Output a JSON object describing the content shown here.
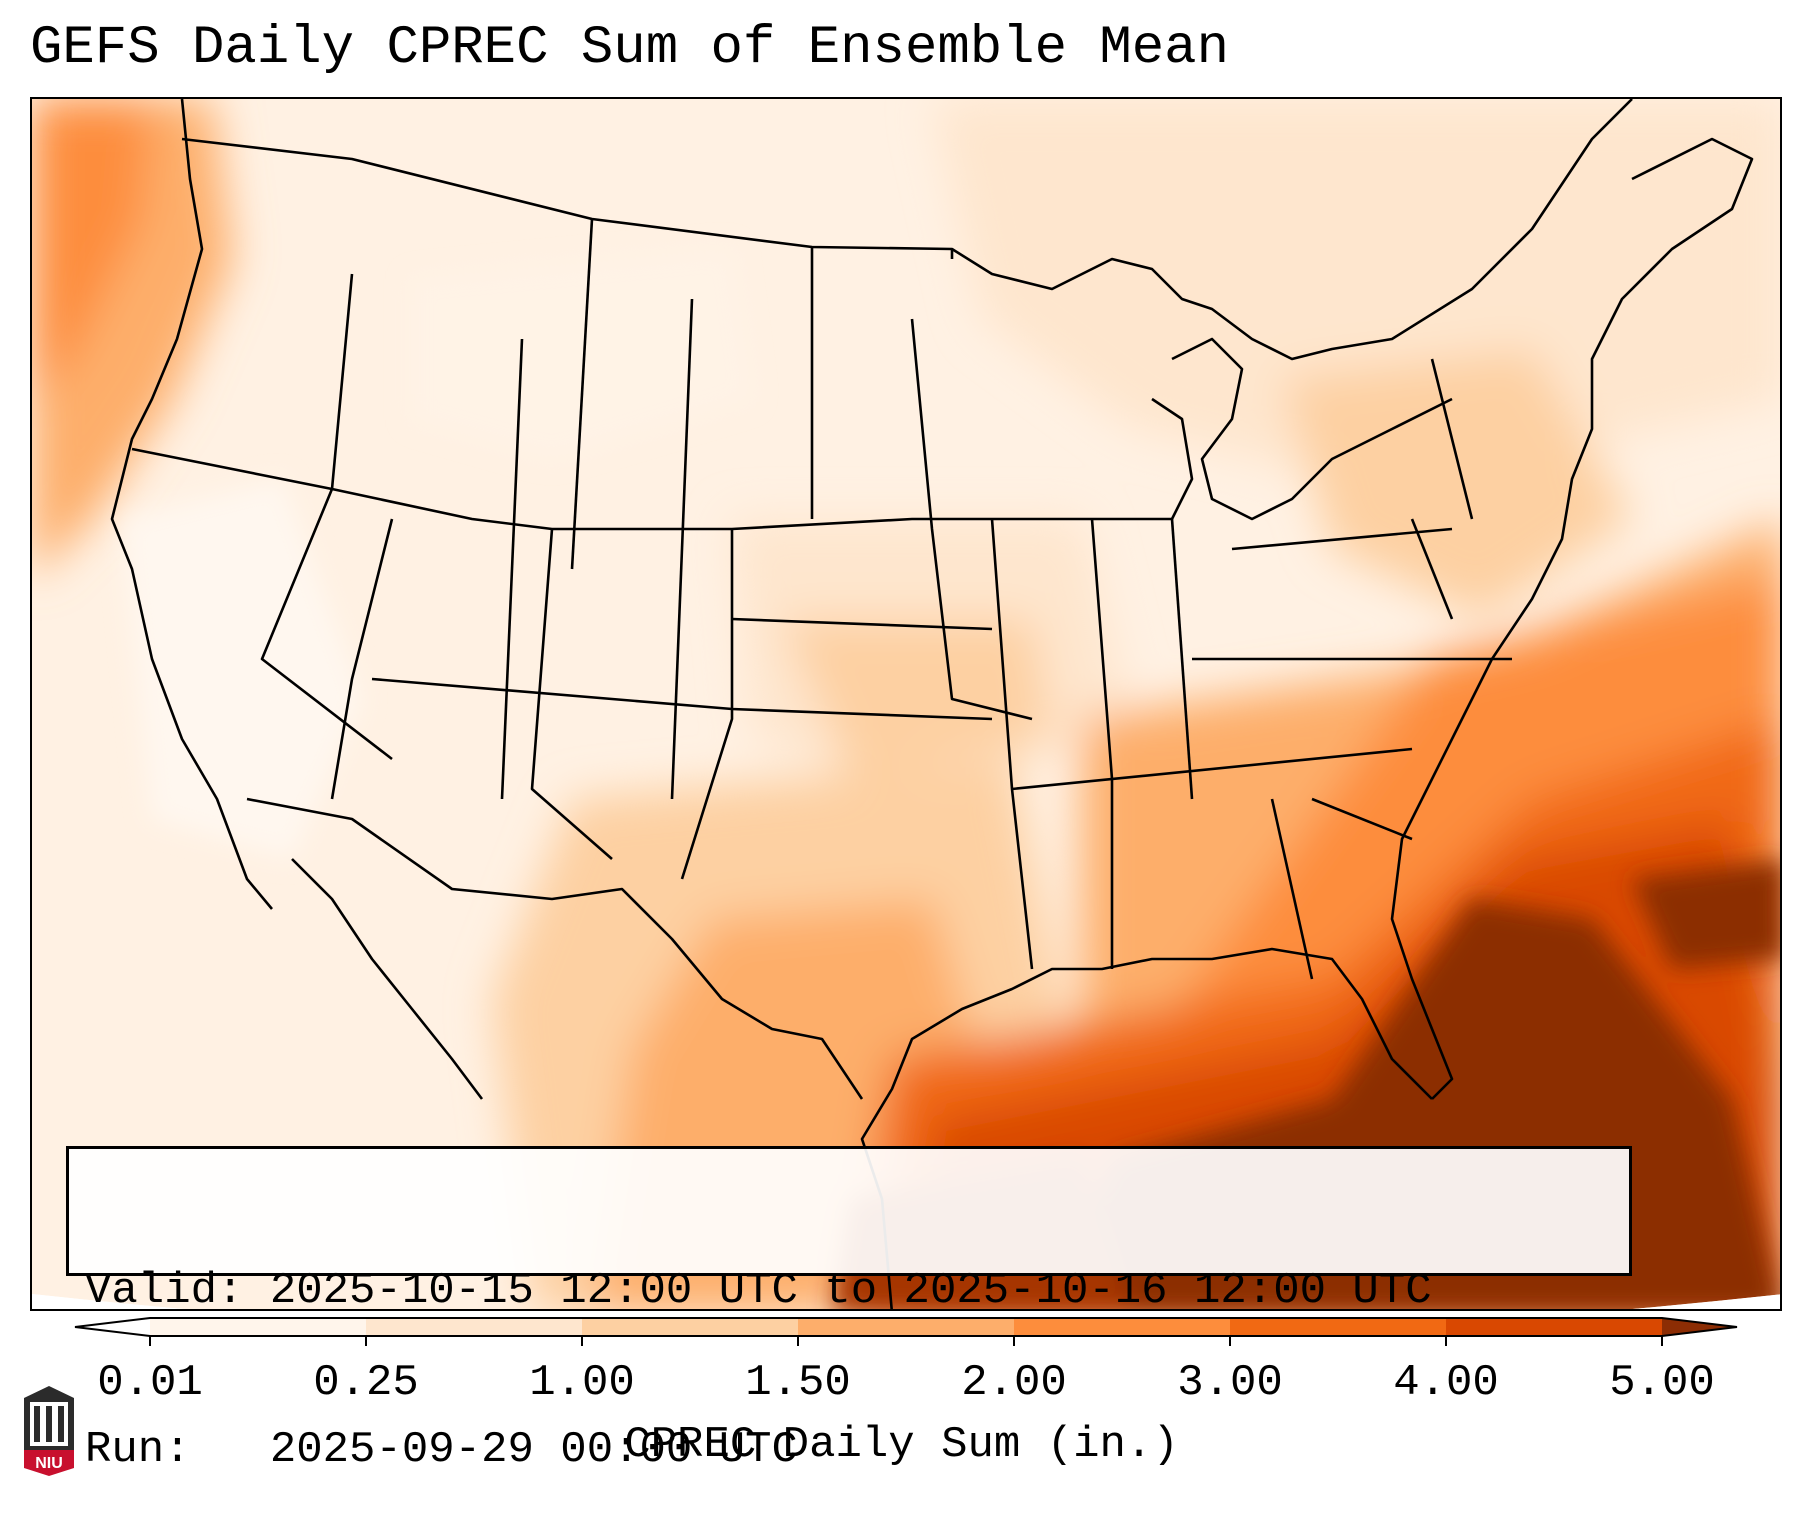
{
  "title": "GEFS Daily CPREC Sum of Ensemble Mean",
  "info": {
    "valid_label": "Valid:",
    "valid_value": "2025-10-15 12:00 UTC to 2025-10-16 12:00 UTC",
    "run_label": "Run:  ",
    "run_value": "2025-09-29 00:00 UTC"
  },
  "colorbar": {
    "label": "CPREC Daily Sum (in.)",
    "ticks": [
      "0.01",
      "0.25",
      "1.00",
      "1.50",
      "2.00",
      "3.00",
      "4.00",
      "5.00"
    ],
    "colors": [
      "#fff5eb",
      "#fee6ce",
      "#fdd0a2",
      "#fdae6b",
      "#fd8d3c",
      "#f16913",
      "#d94801",
      "#8c2d04"
    ],
    "extend": "both"
  },
  "logo": {
    "text": "NIU",
    "color": "#c8102e"
  }
}
